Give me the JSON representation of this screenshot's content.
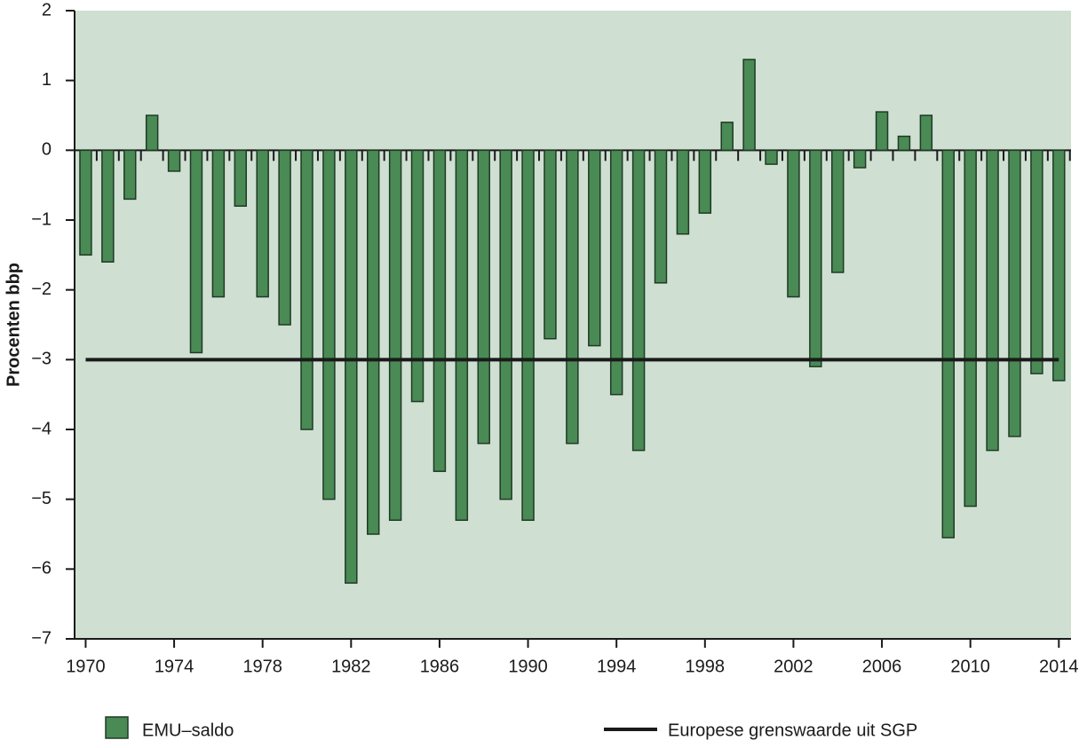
{
  "chart_data": {
    "type": "bar",
    "y_label": "Procenten bbp",
    "x": [
      1970,
      1971,
      1972,
      1973,
      1974,
      1975,
      1976,
      1977,
      1978,
      1979,
      1980,
      1981,
      1982,
      1983,
      1984,
      1985,
      1986,
      1987,
      1988,
      1989,
      1990,
      1991,
      1992,
      1993,
      1994,
      1995,
      1996,
      1997,
      1998,
      1999,
      2000,
      2001,
      2002,
      2003,
      2004,
      2005,
      2006,
      2007,
      2008,
      2009,
      2010,
      2011,
      2012,
      2013,
      2014
    ],
    "series": [
      {
        "name": "EMU–saldo",
        "color": "#4a8a55",
        "values": [
          -1.5,
          -1.6,
          -0.7,
          0.5,
          -0.3,
          -2.9,
          -2.1,
          -0.8,
          -2.1,
          -2.5,
          -4.0,
          -5.0,
          -6.2,
          -5.5,
          -5.3,
          -3.6,
          -4.6,
          -5.3,
          -4.2,
          -5.0,
          -5.3,
          -2.7,
          -4.2,
          -2.8,
          -3.5,
          -4.3,
          -1.9,
          -1.2,
          -0.9,
          0.4,
          1.3,
          -0.2,
          -2.1,
          -3.1,
          -1.75,
          -0.25,
          0.55,
          0.2,
          0.5,
          -5.55,
          -5.1,
          -4.3,
          -4.1,
          -3.2,
          -3.3
        ]
      }
    ],
    "reference_line": {
      "name": "Europese grenswaarde uit SGP",
      "value": -3,
      "color": "#1a1a1a"
    },
    "xlim": [
      1969.5,
      2014.55
    ],
    "xticks": [
      1970,
      1974,
      1978,
      1982,
      1986,
      1990,
      1994,
      1998,
      2002,
      2006,
      2010,
      2014
    ],
    "ylim": [
      -7,
      2
    ],
    "yticks": [
      {
        "value": -7,
        "label": "−7"
      },
      {
        "value": -6,
        "label": "−6"
      },
      {
        "value": -5,
        "label": "−5"
      },
      {
        "value": -4,
        "label": "−4"
      },
      {
        "value": -3,
        "label": "−3"
      },
      {
        "value": -2,
        "label": "−2"
      },
      {
        "value": -1,
        "label": "−1"
      },
      0,
      1,
      2
    ],
    "background": "#cfe0d2"
  }
}
